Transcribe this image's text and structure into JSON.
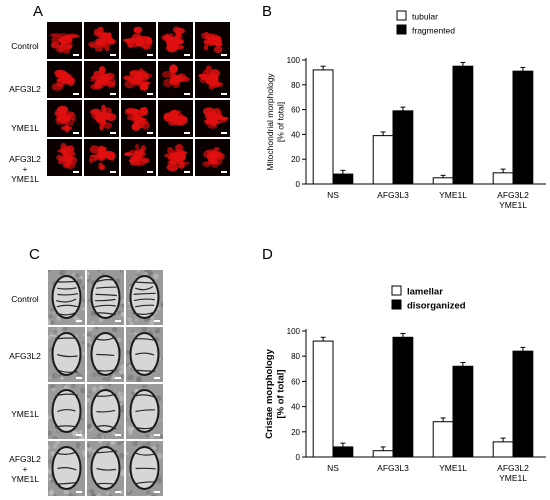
{
  "panels": {
    "a": {
      "letter": "A",
      "rows": [
        "Control",
        "AFG3L2",
        "YME1L",
        "AFG3L2\n+\nYME1L"
      ]
    },
    "b": {
      "letter": "B"
    },
    "c": {
      "letter": "C",
      "rows": [
        "Control",
        "AFG3L2",
        "YME1L",
        "AFG3L2\n+\nYME1L"
      ]
    },
    "d": {
      "letter": "D"
    }
  },
  "colors": {
    "fluorescence": "#e01010",
    "em": "#9a9a9a",
    "bar_open": "#ffffff",
    "bar_filled": "#000000"
  },
  "chart_data": [
    {
      "type": "bar",
      "ylabel": "Mitochondrial morphology\n[% of total]",
      "categories": [
        "NS",
        "AFG3L3",
        "YME1L",
        "AFG3L2\nYME1L"
      ],
      "series": [
        {
          "name": "tubular",
          "values": [
            92,
            39,
            5,
            9
          ],
          "errors": [
            3,
            3,
            2,
            3
          ]
        },
        {
          "name": "fragmented",
          "values": [
            8,
            59,
            95,
            91
          ],
          "errors": [
            3,
            3,
            3,
            3
          ]
        }
      ],
      "ylim": [
        0,
        100
      ],
      "yticks": [
        0,
        20,
        40,
        60,
        80,
        100
      ],
      "legend": "top-left"
    },
    {
      "type": "bar",
      "ylabel": "Cristae morphology\n[% of total]",
      "categories": [
        "NS",
        "AFG3L3",
        "YME1L",
        "AFG3L2\nYME1L"
      ],
      "series": [
        {
          "name": "lamellar",
          "values": [
            92,
            5,
            28,
            12
          ],
          "errors": [
            3,
            3,
            3,
            3
          ]
        },
        {
          "name": "disorganized",
          "values": [
            8,
            95,
            72,
            84
          ],
          "errors": [
            3,
            3,
            3,
            3
          ]
        }
      ],
      "ylim": [
        0,
        100
      ],
      "yticks": [
        0,
        20,
        40,
        60,
        80,
        100
      ],
      "legend": "top-left"
    }
  ]
}
